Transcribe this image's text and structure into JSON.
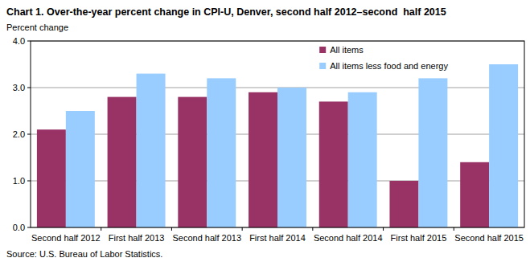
{
  "chart_data": {
    "type": "bar",
    "title": "Chart 1. Over-the-year percent change in CPI-U, Denver, second half 2012–second  half 2015",
    "y_label": "Percent change",
    "source": "Source: U.S. Bureau of Labor Statistics.",
    "categories": [
      "Second half 2012",
      "First half 2013",
      "Second half 2013",
      "First half 2014",
      "Second half 2014",
      "First half 2015",
      "Second half 2015"
    ],
    "series": [
      {
        "name": "All items",
        "color": "#993366",
        "values": [
          2.1,
          2.8,
          2.8,
          2.9,
          2.7,
          1.0,
          1.4
        ]
      },
      {
        "name": "All items less food and energy",
        "color": "#99ccff",
        "values": [
          2.5,
          3.3,
          3.2,
          3.0,
          2.9,
          3.2,
          3.5
        ]
      }
    ],
    "ylim": [
      0,
      4
    ],
    "yticks": [
      {
        "value": 0,
        "label": "0.0"
      },
      {
        "value": 1,
        "label": "1.0"
      },
      {
        "value": 2,
        "label": "2.0"
      },
      {
        "value": 3,
        "label": "3.0"
      },
      {
        "value": 4,
        "label": "4.0"
      }
    ],
    "grid": true,
    "legend": "top-right"
  }
}
